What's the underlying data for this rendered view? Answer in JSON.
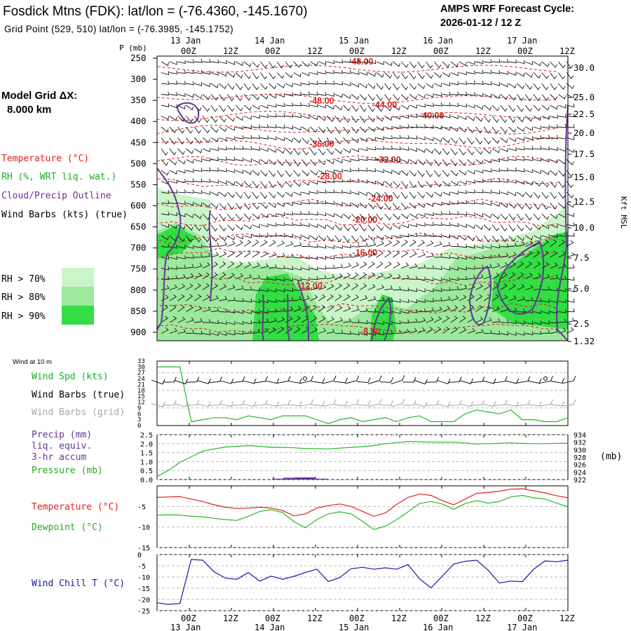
{
  "header": {
    "station": "Fosdick Mtns (FDK):  lat/lon = (-76.4360, -145.1670)",
    "grid_point": "Grid Point (529, 510) lat/lon = (-76.3985, -145.1752)",
    "cycle_title": "AMPS WRF Forecast Cycle:",
    "cycle_value": "2026-01-12 / 12  Z"
  },
  "model_grid": {
    "label": "Model Grid ΔX:",
    "value": "8.000 km"
  },
  "legend": {
    "temperature": "Temperature (°C)",
    "rh": "RH (%, WRT liq. wat.)",
    "cloud": "Cloud/Precip Outline",
    "wind": "Wind Barbs (kts) (true)",
    "rh_levels": [
      "RH > 70%",
      "RH > 80%",
      "RH > 90%"
    ],
    "rh_colors": [
      "#c9f5c9",
      "#9ce89c",
      "#33dd44"
    ]
  },
  "time_axis": {
    "ticks": [
      "00Z",
      "12Z",
      "00Z",
      "12Z",
      "00Z",
      "12Z",
      "00Z",
      "12Z",
      "00Z",
      "12Z"
    ],
    "dates": [
      "13 Jan",
      "14 Jan",
      "15 Jan",
      "16 Jan",
      "17 Jan"
    ]
  },
  "panel_labels": {
    "pressure_unit": "P (mb)",
    "height_unit": "Kft MSL",
    "wind10m": "Wind at 10 m",
    "wind_spd": "Wind Spd (kts)",
    "barbs_true": "Wind Barbs (true)",
    "barbs_grid": "Wind Barbs (grid)",
    "precip1": "Precip (mm)",
    "precip2": "liq. equiv.",
    "precip3": "3-hr accum",
    "pressure": "Pressure (mb)",
    "press_unit": "(mb)",
    "temperature": "Temperature (°C)",
    "dewpoint": "Dewpoint (°C)",
    "windchill": "Wind Chill T (°C)"
  },
  "colors": {
    "temp": "#e02020",
    "dew": "#22bb22",
    "press": "#22bb22",
    "precip": "#663399",
    "chill": "#1a1aa0",
    "cloud": "#663399",
    "grid_barb": "#a0a0a0"
  },
  "chart_data": [
    {
      "type": "heatmap",
      "name": "cross-section",
      "x_range_hours": [
        12,
        120
      ],
      "pressure_levels": [
        250,
        300,
        350,
        400,
        450,
        500,
        550,
        600,
        650,
        700,
        750,
        800,
        850,
        900
      ],
      "height_ticks_kft": [
        "30.0",
        "25.0",
        "22.5",
        "20.0",
        "17.5",
        "15.0",
        "12.5",
        "10.0",
        "7.5",
        "5.0",
        "2.5",
        "1.32"
      ],
      "temperature_labels": [
        {
          "text": "-48.00",
          "h": 52,
          "p": 265
        },
        {
          "text": "-48.00",
          "h": 42,
          "p": 358
        },
        {
          "text": "-44.00",
          "h": 58,
          "p": 367
        },
        {
          "text": "-40.00",
          "h": 70,
          "p": 393
        },
        {
          "text": "-36.00",
          "h": 42,
          "p": 460
        },
        {
          "text": "-32.00",
          "h": 59,
          "p": 498
        },
        {
          "text": "-28.00",
          "h": 44,
          "p": 537
        },
        {
          "text": "-24.00",
          "h": 57,
          "p": 590
        },
        {
          "text": "-20.00",
          "h": 53,
          "p": 640
        },
        {
          "text": "-16.00",
          "h": 53,
          "p": 718
        },
        {
          "text": "-12.00",
          "h": 39,
          "p": 797
        },
        {
          "text": "-8.00",
          "h": 55,
          "p": 905
        }
      ]
    },
    {
      "type": "line",
      "name": "wind-10m",
      "x_hours": [
        12,
        15,
        18,
        21,
        24,
        27,
        30,
        33,
        36,
        39,
        42,
        45,
        48,
        51,
        54,
        57,
        60,
        63,
        66,
        69,
        72,
        75,
        78,
        81,
        84,
        87,
        90,
        93,
        96,
        99,
        102,
        105,
        108,
        111,
        114,
        117,
        120
      ],
      "series": [
        {
          "name": "Wind Spd (kts)",
          "values": [
            30,
            30,
            30,
            2,
            3,
            4,
            4,
            3,
            5,
            4,
            3,
            5,
            5,
            5,
            3,
            1,
            3,
            4,
            2,
            3,
            4,
            2,
            4,
            5,
            2,
            2,
            2,
            6,
            8,
            7,
            6,
            8,
            3,
            3,
            2,
            2,
            4
          ]
        }
      ],
      "ylim": [
        0,
        33
      ],
      "yticks": [
        0,
        3,
        6,
        9,
        12,
        15,
        18,
        21,
        24,
        27,
        30,
        33
      ]
    },
    {
      "type": "line",
      "name": "precip-pressure",
      "x_hours": [
        12,
        15,
        18,
        21,
        24,
        27,
        30,
        33,
        36,
        39,
        42,
        45,
        48,
        51,
        54,
        57,
        60,
        63,
        66,
        69,
        72,
        75,
        78,
        81,
        84,
        87,
        90,
        93,
        96,
        99,
        102,
        105,
        108,
        111,
        114,
        117,
        120
      ],
      "series": [
        {
          "name": "Pressure (mb)",
          "values": [
            922.8,
            924.5,
            926.6,
            928.1,
            929.6,
            930.2,
            930.7,
            930.9,
            931.1,
            930.9,
            930.6,
            930.6,
            930.5,
            930.3,
            930.3,
            930.2,
            930.4,
            930.6,
            930.8,
            931.1,
            931.6,
            931.9,
            932.2,
            932.1,
            932.0,
            932.0,
            932.0,
            931.8,
            931.5,
            931.6,
            931.7,
            931.8,
            931.7,
            931.6,
            931.6,
            931.7,
            931.7
          ]
        },
        {
          "name": "Precip (mm)",
          "values": [
            0,
            0,
            0,
            0,
            0,
            0,
            0,
            0,
            0,
            0,
            0,
            0.05,
            0.1,
            0.12,
            0.05,
            0,
            0,
            0,
            0,
            0,
            0,
            0,
            0.02,
            0,
            0,
            0,
            0,
            0,
            0,
            0,
            0,
            0,
            0,
            0,
            0,
            0,
            0
          ]
        }
      ],
      "ylim_precip": [
        0,
        2.5
      ],
      "yticks_precip": [
        "0.0",
        "0.5",
        "1.0",
        "1.5",
        "2.0",
        "2.5"
      ],
      "ylim_pressure": [
        922,
        934
      ],
      "yticks_pressure": [
        "922",
        "924",
        "926",
        "928",
        "930",
        "932",
        "934"
      ]
    },
    {
      "type": "line",
      "name": "temp-dewpoint",
      "x_hours": [
        12,
        15,
        18,
        21,
        24,
        27,
        30,
        33,
        36,
        39,
        42,
        45,
        48,
        51,
        54,
        57,
        60,
        63,
        66,
        69,
        72,
        75,
        78,
        81,
        84,
        87,
        90,
        93,
        96,
        99,
        102,
        105,
        108,
        111,
        114,
        117,
        120
      ],
      "series": [
        {
          "name": "Temperature (°C)",
          "values": [
            -2.8,
            -2.7,
            -2.6,
            -3.2,
            -3.8,
            -4.6,
            -5.2,
            -5.5,
            -5.4,
            -5.2,
            -5.4,
            -6.0,
            -7.3,
            -6.8,
            -5.4,
            -4.8,
            -4.4,
            -5.0,
            -6.2,
            -7.4,
            -6.6,
            -4.5,
            -2.8,
            -2.0,
            -2.3,
            -3.6,
            -4.6,
            -3.2,
            -1.8,
            -1.6,
            -1.3,
            -0.8,
            -0.7,
            -1.2,
            -1.7,
            -2.4,
            -2.9
          ]
        },
        {
          "name": "Dewpoint (°C)",
          "values": [
            -7.1,
            -7.0,
            -7.1,
            -7.4,
            -7.5,
            -7.9,
            -8.2,
            -8.4,
            -7.4,
            -6.2,
            -5.8,
            -6.5,
            -8.7,
            -10.2,
            -8.2,
            -6.8,
            -6.3,
            -6.8,
            -8.6,
            -10.6,
            -9.8,
            -8.2,
            -6.3,
            -4.3,
            -3.8,
            -4.4,
            -5.7,
            -4.3,
            -3.6,
            -4.2,
            -3.8,
            -2.7,
            -2.3,
            -2.9,
            -3.2,
            -4.2,
            -5.1
          ]
        }
      ],
      "ylim": [
        -15,
        0
      ],
      "yticks": [
        "-5",
        "-10",
        "-15"
      ]
    },
    {
      "type": "line",
      "name": "wind-chill",
      "x_hours": [
        12,
        15,
        18,
        21,
        24,
        27,
        30,
        33,
        36,
        39,
        42,
        45,
        48,
        51,
        54,
        57,
        60,
        63,
        66,
        69,
        72,
        75,
        78,
        81,
        84,
        87,
        90,
        93,
        96,
        99,
        102,
        105,
        108,
        111,
        114,
        117,
        120
      ],
      "series": [
        {
          "name": "Wind Chill T (°C)",
          "values": [
            -21.5,
            -22.2,
            -21.8,
            -2.2,
            -2.5,
            -7.7,
            -10.5,
            -11.0,
            -8.0,
            -11.8,
            -9.6,
            -11.0,
            -9.7,
            -8.0,
            -6.5,
            -12.0,
            -10.3,
            -6.3,
            -5.7,
            -6.5,
            -5.9,
            -6.5,
            -4.5,
            -10.8,
            -14.8,
            -9.6,
            -4.2,
            -3.0,
            -2.5,
            -6.9,
            -12.7,
            -11.8,
            -12.1,
            -6.5,
            -2.8,
            -3.2,
            -2.5
          ]
        }
      ],
      "ylim": [
        -25,
        0
      ],
      "yticks": [
        "0",
        "-5",
        "-10",
        "-15",
        "-20",
        "-25"
      ]
    }
  ]
}
